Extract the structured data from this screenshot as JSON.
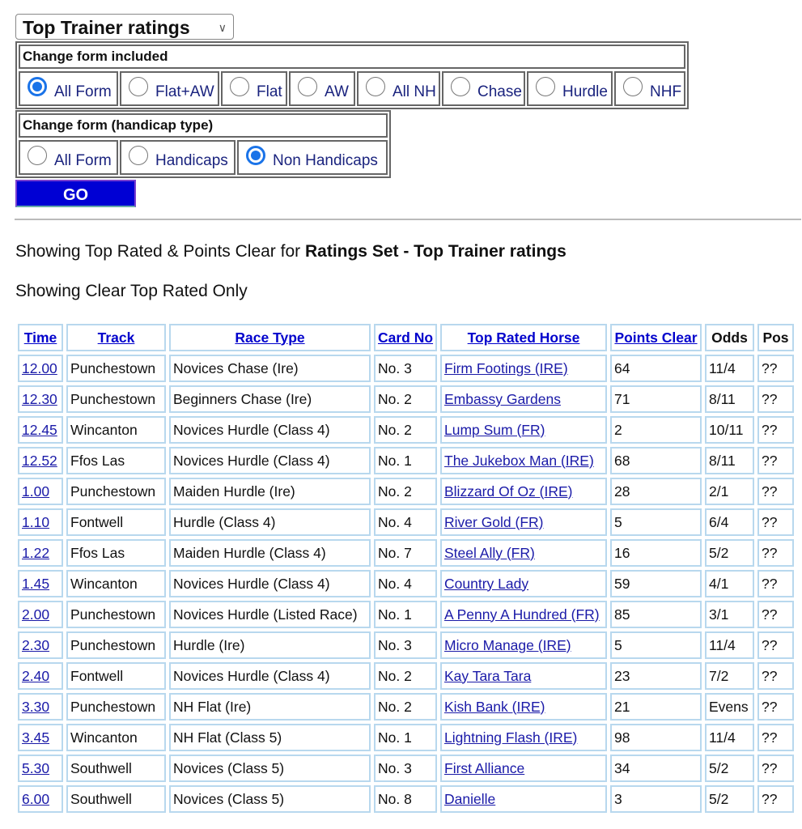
{
  "select": {
    "value": "Top Trainer ratings"
  },
  "form_included": {
    "title": "Change form included",
    "options": [
      "All Form",
      "Flat+AW",
      "Flat",
      "AW",
      "All NH",
      "Chase",
      "Hurdle",
      "NHF"
    ],
    "selected": "All Form"
  },
  "handicap_type": {
    "title": "Change form (handicap type)",
    "options": [
      "All Form",
      "Handicaps",
      "Non Handicaps"
    ],
    "selected": "Non Handicaps"
  },
  "go_label": "GO",
  "showing_prefix": "Showing Top Rated & Points Clear for ",
  "showing_bold": "Ratings Set - Top Trainer ratings",
  "showing_clear": "Showing Clear Top Rated Only",
  "table": {
    "headers": [
      "Time",
      "Track",
      "Race Type",
      "Card No",
      "Top Rated Horse",
      "Points Clear",
      "Odds",
      "Pos"
    ],
    "rows": [
      [
        "12.00",
        "Punchestown",
        "Novices Chase (Ire)",
        "No. 3",
        "Firm Footings (IRE)",
        "64",
        "11/4",
        "??"
      ],
      [
        "12.30",
        "Punchestown",
        "Beginners Chase (Ire)",
        "No. 2",
        "Embassy Gardens",
        "71",
        "8/11",
        "??"
      ],
      [
        "12.45",
        "Wincanton",
        "Novices Hurdle (Class 4)",
        "No. 2",
        "Lump Sum (FR)",
        "2",
        "10/11",
        "??"
      ],
      [
        "12.52",
        "Ffos Las",
        "Novices Hurdle (Class 4)",
        "No. 1",
        "The Jukebox Man (IRE)",
        "68",
        "8/11",
        "??"
      ],
      [
        "1.00",
        "Punchestown",
        "Maiden Hurdle (Ire)",
        "No. 2",
        "Blizzard Of Oz (IRE)",
        "28",
        "2/1",
        "??"
      ],
      [
        "1.10",
        "Fontwell",
        "Hurdle (Class 4)",
        "No. 4",
        "River Gold (FR)",
        "5",
        "6/4",
        "??"
      ],
      [
        "1.22",
        "Ffos Las",
        "Maiden Hurdle (Class 4)",
        "No. 7",
        "Steel Ally (FR)",
        "16",
        "5/2",
        "??"
      ],
      [
        "1.45",
        "Wincanton",
        "Novices Hurdle (Class 4)",
        "No. 4",
        "Country Lady",
        "59",
        "4/1",
        "??"
      ],
      [
        "2.00",
        "Punchestown",
        "Novices Hurdle (Listed Race)",
        "No. 1",
        "A Penny A Hundred (FR)",
        "85",
        "3/1",
        "??"
      ],
      [
        "2.30",
        "Punchestown",
        "Hurdle (Ire)",
        "No. 3",
        "Micro Manage (IRE)",
        "5",
        "11/4",
        "??"
      ],
      [
        "2.40",
        "Fontwell",
        "Novices Hurdle (Class 4)",
        "No. 2",
        "Kay Tara Tara",
        "23",
        "7/2",
        "??"
      ],
      [
        "3.30",
        "Punchestown",
        "NH Flat (Ire)",
        "No. 2",
        "Kish Bank (IRE)",
        "21",
        "Evens",
        "??"
      ],
      [
        "3.45",
        "Wincanton",
        "NH Flat (Class 5)",
        "No. 1",
        "Lightning Flash (IRE)",
        "98",
        "11/4",
        "??"
      ],
      [
        "5.30",
        "Southwell",
        "Novices (Class 5)",
        "No. 3",
        "First Alliance",
        "34",
        "5/2",
        "??"
      ],
      [
        "6.00",
        "Southwell",
        "Novices (Class 5)",
        "No. 8",
        "Danielle",
        "3",
        "5/2",
        "??"
      ]
    ]
  }
}
